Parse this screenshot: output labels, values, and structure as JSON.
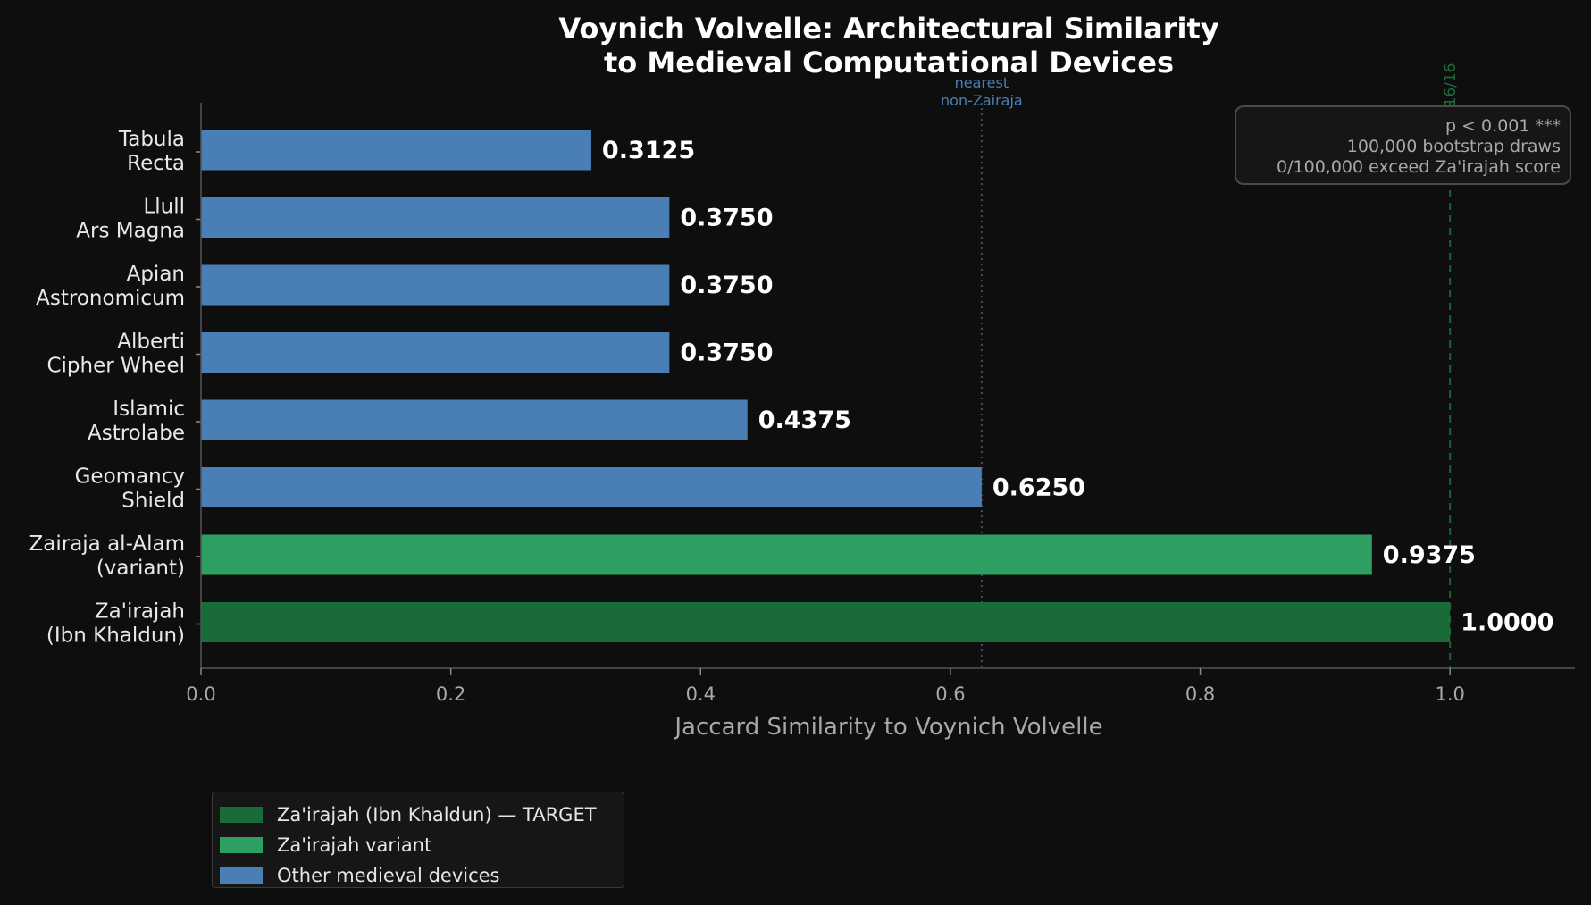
{
  "chart_data": {
    "type": "bar",
    "orientation": "horizontal",
    "title": "Voynich Volvelle: Architectural Similarity\nto Medieval Computational Devices",
    "xlabel": "Jaccard Similarity to Voynich Volvelle",
    "xlim": [
      0,
      1.1
    ],
    "xticks": [
      "0.0",
      "0.2",
      "0.4",
      "0.6",
      "0.8",
      "1.0"
    ],
    "categories": [
      "Tabula\nRecta",
      "Llull\nArs Magna",
      "Apian\nAstronomicum",
      "Alberti\nCipher Wheel",
      "Islamic\nAstrolabe",
      "Geomancy\nShield",
      "Zairaja al-Alam\n(variant)",
      "Za'irajah\n(Ibn Khaldun)"
    ],
    "values": [
      0.3125,
      0.375,
      0.375,
      0.375,
      0.4375,
      0.625,
      0.9375,
      1.0
    ],
    "value_labels": [
      "0.3125",
      "0.3750",
      "0.3750",
      "0.3750",
      "0.4375",
      "0.6250",
      "0.9375",
      "1.0000"
    ],
    "bar_groups": [
      "other",
      "other",
      "other",
      "other",
      "other",
      "other",
      "variant",
      "target"
    ],
    "reference_lines": [
      {
        "x": 0.625,
        "label": "nearest\nnon-Zairaja",
        "style": "dotted",
        "color": "#4a7fb5"
      },
      {
        "x": 1.0,
        "label": "16/16",
        "style": "dashed",
        "color": "#1f6b3c"
      }
    ],
    "annotation_box": [
      "p < 0.001 ***",
      "100,000 bootstrap draws",
      "0/100,000 exceed Za'irajah score"
    ],
    "legend": {
      "placement": "bottom-left (below axes)",
      "entries": [
        {
          "label": "Za'irajah (Ibn Khaldun) — TARGET",
          "color": "#1a6b3a"
        },
        {
          "label": "Za'irajah variant",
          "color": "#2e9e62"
        },
        {
          "label": "Other medieval devices",
          "color": "#4a7fb5"
        }
      ]
    },
    "colors": {
      "other": "#4a7fb5",
      "variant": "#2e9e62",
      "target": "#1a6b3a",
      "background": "#0e0e0e"
    },
    "grid": false
  }
}
